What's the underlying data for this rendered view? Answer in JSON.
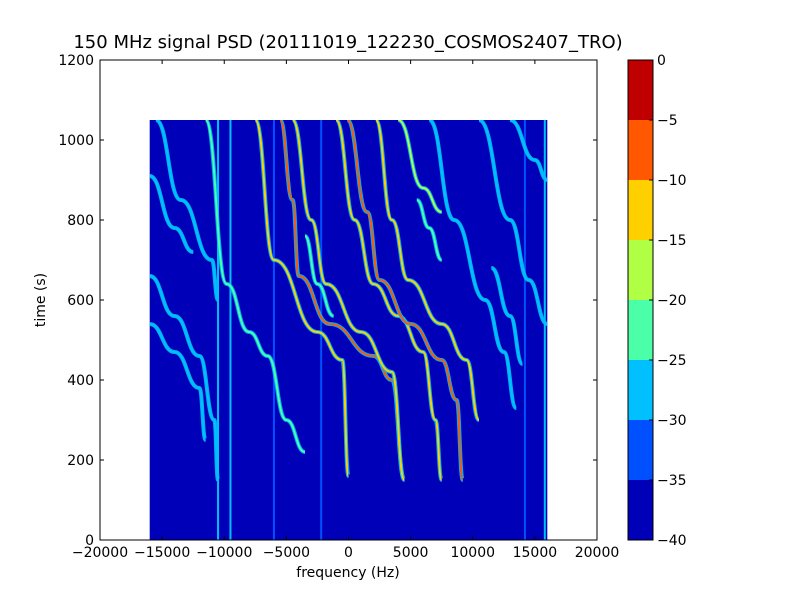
{
  "chart_data": {
    "type": "heatmap",
    "title": "150 MHz signal PSD (20111019_122230_COSMOS2407_TRO)",
    "xlabel": "frequency (Hz)",
    "ylabel": "time (s)",
    "xlim": [
      -20000,
      20000
    ],
    "ylim": [
      0,
      1200
    ],
    "x_ticks": [
      -20000,
      -15000,
      -10000,
      -5000,
      0,
      5000,
      10000,
      15000,
      20000
    ],
    "x_tick_labels": [
      "−20000",
      "−15000",
      "−10000",
      "−5000",
      "0",
      "5000",
      "10000",
      "15000",
      "20000"
    ],
    "y_ticks": [
      0,
      200,
      400,
      600,
      800,
      1000,
      1200
    ],
    "y_tick_labels": [
      "0",
      "200",
      "400",
      "600",
      "800",
      "1000",
      "1200"
    ],
    "data_extent": {
      "x": [
        -16000,
        16000
      ],
      "y": [
        0,
        1050
      ]
    },
    "colorbar": {
      "range": [
        -40,
        0
      ],
      "ticks": [
        -40,
        -35,
        -30,
        -25,
        -20,
        -15,
        -10,
        -5,
        0
      ],
      "tick_labels": [
        "−40",
        "−35",
        "−30",
        "−25",
        "−20",
        "−15",
        "−10",
        "−5",
        "0"
      ],
      "levels": [
        {
          "range": [
            -40,
            -35
          ],
          "color": "#0000b8"
        },
        {
          "range": [
            -35,
            -30
          ],
          "color": "#0050ff"
        },
        {
          "range": [
            -30,
            -25
          ],
          "color": "#00c0ff"
        },
        {
          "range": [
            -25,
            -20
          ],
          "color": "#4bffa8"
        },
        {
          "range": [
            -20,
            -15
          ],
          "color": "#b0ff45"
        },
        {
          "range": [
            -15,
            -10
          ],
          "color": "#ffd000"
        },
        {
          "range": [
            -10,
            -5
          ],
          "color": "#ff5800"
        },
        {
          "range": [
            -5,
            0
          ],
          "color": "#c00000"
        }
      ]
    },
    "background_level": -35,
    "stripe_lines": [
      {
        "f": -10500,
        "t0": 0,
        "t1": 1050,
        "level": -27
      },
      {
        "f": -9500,
        "t0": 0,
        "t1": 1050,
        "level": -27
      },
      {
        "f": -6000,
        "t0": 0,
        "t1": 1050,
        "level": -30
      },
      {
        "f": -2200,
        "t0": 0,
        "t1": 1050,
        "level": -30
      },
      {
        "f": 14200,
        "t0": 0,
        "t1": 1050,
        "level": -30
      },
      {
        "f": 15800,
        "t0": 0,
        "t1": 1050,
        "level": -27
      }
    ],
    "traces": [
      {
        "points": [
          [
            -7500,
            1050
          ],
          [
            -6000,
            700
          ],
          [
            -2500,
            520
          ],
          [
            -500,
            450
          ],
          [
            0,
            160
          ]
        ],
        "level": -10
      },
      {
        "points": [
          [
            -5500,
            1050
          ],
          [
            -4500,
            850
          ],
          [
            -4000,
            660
          ],
          [
            -1500,
            540
          ],
          [
            2000,
            460
          ],
          [
            3500,
            400
          ],
          [
            4500,
            150
          ]
        ],
        "level": -5
      },
      {
        "points": [
          [
            -4500,
            1050
          ],
          [
            -3000,
            800
          ],
          [
            -1800,
            640
          ],
          [
            1000,
            520
          ],
          [
            3500,
            420
          ],
          [
            4500,
            150
          ]
        ],
        "level": -10
      },
      {
        "points": [
          [
            -1000,
            1050
          ],
          [
            500,
            800
          ],
          [
            2000,
            640
          ],
          [
            4000,
            560
          ],
          [
            6000,
            470
          ],
          [
            7000,
            300
          ],
          [
            7500,
            150
          ]
        ],
        "level": -10
      },
      {
        "points": [
          [
            -100,
            1050
          ],
          [
            1500,
            820
          ],
          [
            2500,
            650
          ],
          [
            5000,
            540
          ],
          [
            7500,
            450
          ],
          [
            8700,
            350
          ],
          [
            9200,
            150
          ]
        ],
        "level": -5
      },
      {
        "points": [
          [
            2200,
            1050
          ],
          [
            3500,
            800
          ],
          [
            4800,
            650
          ],
          [
            7500,
            540
          ],
          [
            9500,
            450
          ],
          [
            10500,
            300
          ]
        ],
        "level": -10
      },
      {
        "points": [
          [
            4000,
            1050
          ],
          [
            6000,
            880
          ],
          [
            7500,
            820
          ]
        ],
        "level": -15
      },
      {
        "points": [
          [
            -11500,
            1050
          ],
          [
            -9800,
            640
          ],
          [
            -8000,
            520
          ],
          [
            -6500,
            460
          ],
          [
            -5000,
            300
          ],
          [
            -3500,
            220
          ]
        ],
        "level": -20
      },
      {
        "points": [
          [
            -16000,
            660
          ],
          [
            -14000,
            560
          ],
          [
            -12000,
            460
          ],
          [
            -10800,
            300
          ],
          [
            -10500,
            150
          ]
        ],
        "level": -25
      },
      {
        "points": [
          [
            -16000,
            540
          ],
          [
            -14000,
            470
          ],
          [
            -12000,
            380
          ],
          [
            -11500,
            250
          ]
        ],
        "level": -25
      },
      {
        "points": [
          [
            -15500,
            1050
          ],
          [
            -13500,
            850
          ],
          [
            -11000,
            700
          ],
          [
            -10500,
            600
          ]
        ],
        "level": -25
      },
      {
        "points": [
          [
            -16000,
            910
          ],
          [
            -14000,
            780
          ],
          [
            -12500,
            720
          ]
        ],
        "level": -25
      },
      {
        "points": [
          [
            6500,
            1050
          ],
          [
            8500,
            800
          ],
          [
            11000,
            600
          ],
          [
            12500,
            470
          ],
          [
            13500,
            330
          ]
        ],
        "level": -25
      },
      {
        "points": [
          [
            10500,
            1050
          ],
          [
            13000,
            800
          ],
          [
            14500,
            650
          ],
          [
            16000,
            540
          ]
        ],
        "level": -25
      },
      {
        "points": [
          [
            13000,
            1050
          ],
          [
            15000,
            950
          ],
          [
            16000,
            900
          ]
        ],
        "level": -25
      },
      {
        "points": [
          [
            11500,
            680
          ],
          [
            13000,
            560
          ],
          [
            14000,
            440
          ]
        ],
        "level": -25
      },
      {
        "points": [
          [
            -3500,
            760
          ],
          [
            -2500,
            640
          ],
          [
            -1200,
            560
          ]
        ],
        "level": -20
      },
      {
        "points": [
          [
            5500,
            850
          ],
          [
            6500,
            780
          ],
          [
            7500,
            700
          ]
        ],
        "level": -20
      }
    ]
  }
}
